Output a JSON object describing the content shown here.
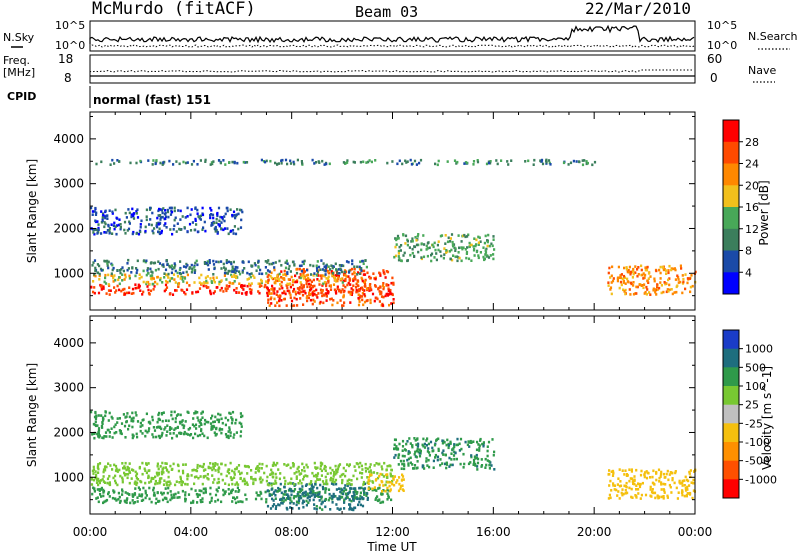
{
  "header": {
    "station": "McMurdo (fitACF)",
    "beam": "Beam 03",
    "date": "22/Mar/2010"
  },
  "left_labels": {
    "nsky": "N.Sky",
    "freq": "Freq.",
    "mhz": "[MHz]",
    "cpid": "CPID"
  },
  "right_labels": {
    "nsearch": "N.Search",
    "nave": "Nave"
  },
  "cpid_value": "normal (fast) 151",
  "noise_panel": {
    "left_ticks": [
      "10^5",
      "10^0"
    ],
    "right_ticks": [
      "10^5",
      "10^0"
    ]
  },
  "freq_panel": {
    "left_ticks": [
      "18",
      "8"
    ],
    "right_ticks": [
      "60",
      "0"
    ]
  },
  "colors": {
    "power": [
      "#0000ff",
      "#1a4aa8",
      "#3b7e5c",
      "#48a858",
      "#f2c01c",
      "#ff8800",
      "#ff4a00",
      "#ff0000"
    ],
    "velocity": [
      "#1a3cc8",
      "#1e6e7e",
      "#2f9a4a",
      "#78c832",
      "#c0c0c0",
      "#f5c00e",
      "#ff9000",
      "#ff5000",
      "#ff0000"
    ]
  },
  "chart_data": [
    {
      "type": "heatmap",
      "xlabel": "Time UT",
      "ylabel": "Slant Range [km]",
      "xlim": [
        0,
        24
      ],
      "ylim": [
        180,
        4600
      ],
      "x_ticks": [
        "00:00",
        "04:00",
        "08:00",
        "12:00",
        "16:00",
        "20:00",
        "00:00"
      ],
      "y_ticks": [
        1000,
        2000,
        3000,
        4000
      ],
      "colorbar": {
        "label": "Power [dB]",
        "range": [
          0,
          32
        ],
        "ticks": [
          4,
          8,
          12,
          16,
          20,
          24,
          28
        ]
      },
      "regions": [
        {
          "t": [
            0,
            12
          ],
          "r": [
            550,
            780
          ],
          "value": 28
        },
        {
          "t": [
            7,
            12
          ],
          "r": [
            300,
            1150
          ],
          "value": 26
        },
        {
          "t": [
            0,
            10
          ],
          "r": [
            780,
            1000
          ],
          "value": 18
        },
        {
          "t": [
            0,
            11
          ],
          "r": [
            1000,
            1320
          ],
          "value": 9
        },
        {
          "t": [
            12,
            16
          ],
          "r": [
            1300,
            1900
          ],
          "value": 13
        },
        {
          "t": [
            0,
            6
          ],
          "r": [
            1900,
            2500
          ],
          "value": 6
        },
        {
          "t": [
            20.5,
            24
          ],
          "r": [
            550,
            1200
          ],
          "value": 22
        },
        {
          "t": [
            0,
            20
          ],
          "r": [
            3450,
            3560
          ],
          "value": 10
        }
      ]
    },
    {
      "type": "heatmap",
      "xlabel": "Time UT",
      "ylabel": "Slant Range [km]",
      "xlim": [
        0,
        24
      ],
      "ylim": [
        180,
        4600
      ],
      "x_ticks": [
        "00:00",
        "04:00",
        "08:00",
        "12:00",
        "16:00",
        "20:00",
        "00:00"
      ],
      "y_ticks": [
        1000,
        2000,
        3000,
        4000
      ],
      "colorbar": {
        "label": "Velocity [m s^-1]",
        "ticks": [
          "1000",
          "500",
          "100",
          "25",
          "-25",
          "-100",
          "-500",
          "-1000"
        ]
      },
      "regions": [
        {
          "t": [
            0,
            12
          ],
          "r": [
            450,
            800
          ],
          "value": 60
        },
        {
          "t": [
            7,
            11
          ],
          "r": [
            300,
            900
          ],
          "value": 150
        },
        {
          "t": [
            0,
            12
          ],
          "r": [
            850,
            1350
          ],
          "value": 0
        },
        {
          "t": [
            11,
            12.5
          ],
          "r": [
            700,
            1100
          ],
          "value": -200
        },
        {
          "t": [
            12,
            16
          ],
          "r": [
            1200,
            1900
          ],
          "value": 80
        },
        {
          "t": [
            20.5,
            24
          ],
          "r": [
            550,
            1200
          ],
          "value": -200
        },
        {
          "t": [
            0,
            6
          ],
          "r": [
            1900,
            2500
          ],
          "value": 60
        }
      ]
    }
  ]
}
